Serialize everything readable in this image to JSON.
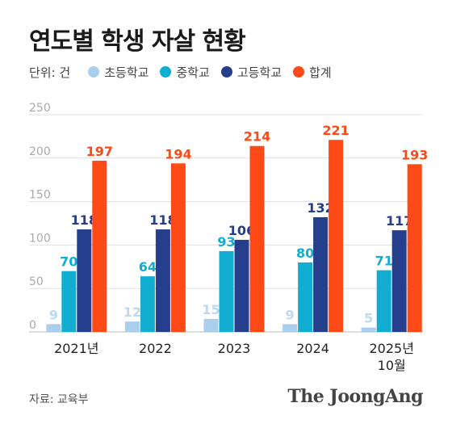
{
  "header": {
    "title": "연도별 학생 자살 현황"
  },
  "legend": {
    "unit": "단위: 건",
    "items": [
      {
        "label": "초등학교",
        "color": "#a9cfec"
      },
      {
        "label": "중학교",
        "color": "#12aed1"
      },
      {
        "label": "고등학교",
        "color": "#253f8c"
      },
      {
        "label": "합계",
        "color": "#fe4a17"
      }
    ]
  },
  "footer": {
    "source": "자료: 교육부",
    "brand": "The JoongAng"
  },
  "chart_data": {
    "type": "bar",
    "title": "연도별 학생 자살 현황",
    "categories": [
      "2021년",
      "2022",
      "2023",
      "2024",
      "2025년\n10월"
    ],
    "series": [
      {
        "name": "초등학교",
        "values": [
          9,
          12,
          15,
          9,
          5
        ],
        "color": "#a9cfec",
        "label_color": "#bcd9ef"
      },
      {
        "name": "중학교",
        "values": [
          70,
          64,
          93,
          80,
          71
        ],
        "color": "#12aed1",
        "label_color": "#12aed1"
      },
      {
        "name": "고등학교",
        "values": [
          118,
          118,
          106,
          132,
          117
        ],
        "color": "#253f8c",
        "label_color": "#253f8c"
      },
      {
        "name": "합계",
        "values": [
          197,
          194,
          214,
          221,
          193
        ],
        "color": "#fe4a17",
        "label_color": "#fe4a17"
      }
    ],
    "ylim": [
      0,
      250
    ],
    "yticks": [
      0,
      50,
      100,
      150,
      200,
      250
    ],
    "grid": true
  }
}
